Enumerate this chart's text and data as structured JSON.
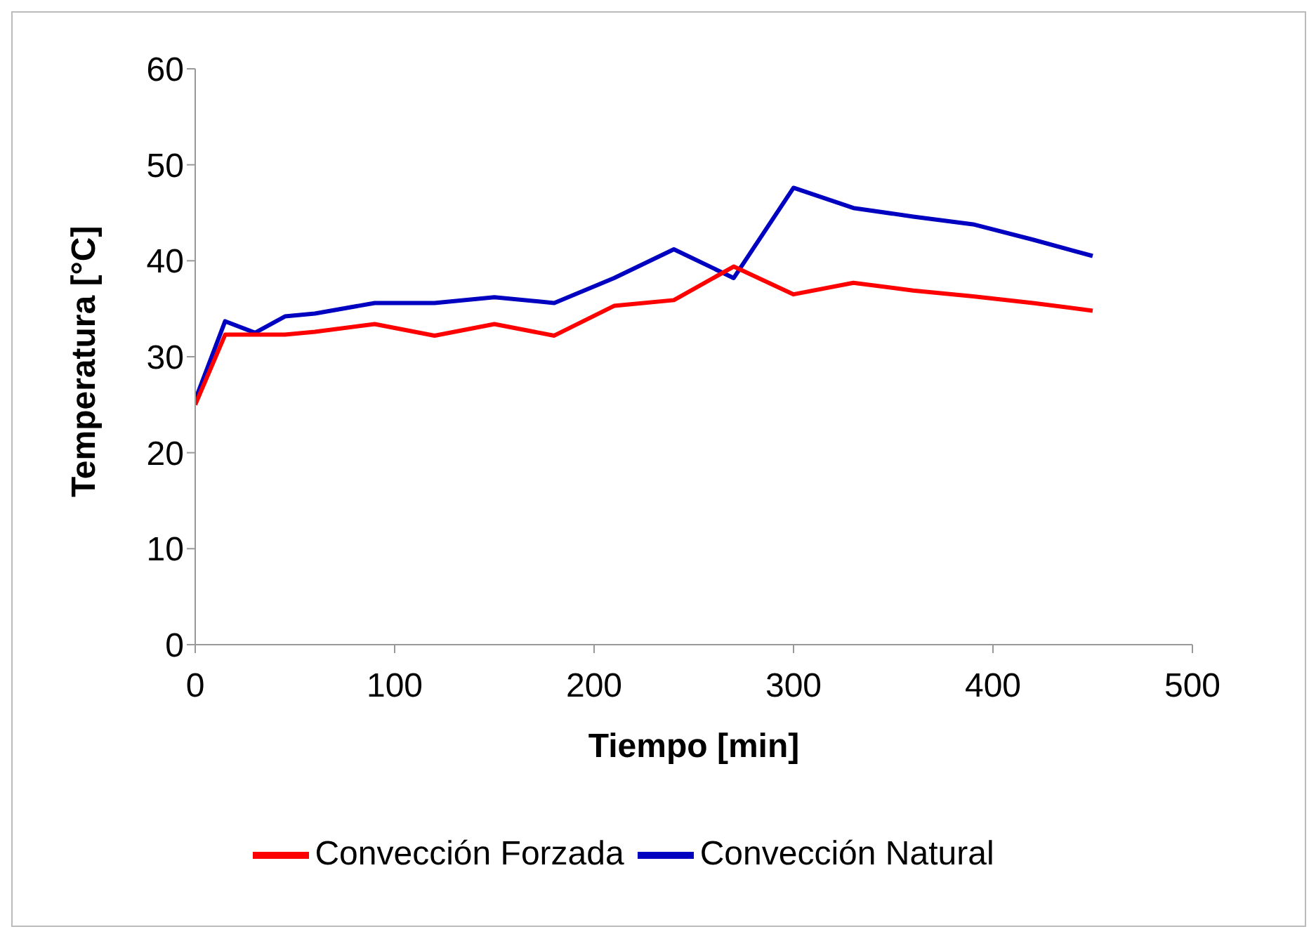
{
  "chart_data": {
    "type": "line",
    "xlabel": "Tiempo [min]",
    "ylabel": "Temperatura [°C]",
    "x": [
      0,
      15,
      30,
      45,
      60,
      90,
      120,
      150,
      180,
      210,
      240,
      270,
      300,
      330,
      360,
      390,
      420,
      450
    ],
    "series": [
      {
        "name": "Convección Natural",
        "color": "#0000c0",
        "values": [
          25.5,
          33.7,
          32.5,
          34.2,
          34.5,
          35.6,
          35.6,
          36.2,
          35.6,
          38.2,
          41.2,
          38.2,
          47.6,
          45.5,
          44.6,
          43.8,
          42.2,
          40.5
        ]
      },
      {
        "name": "Convección Forzada",
        "color": "#ff0000",
        "values": [
          25,
          32.3,
          32.3,
          32.3,
          32.6,
          33.4,
          32.2,
          33.4,
          32.2,
          35.3,
          35.9,
          39.4,
          36.5,
          37.7,
          36.9,
          36.3,
          35.6,
          34.8
        ]
      }
    ],
    "xlim": [
      0,
      500
    ],
    "xticks": [
      0,
      100,
      200,
      300,
      400,
      500
    ],
    "ylim": [
      0,
      60
    ],
    "yticks": [
      0,
      10,
      20,
      30,
      40,
      50,
      60
    ],
    "grid": false,
    "legend": "bottom",
    "marker": "none",
    "line_style": "solid"
  }
}
